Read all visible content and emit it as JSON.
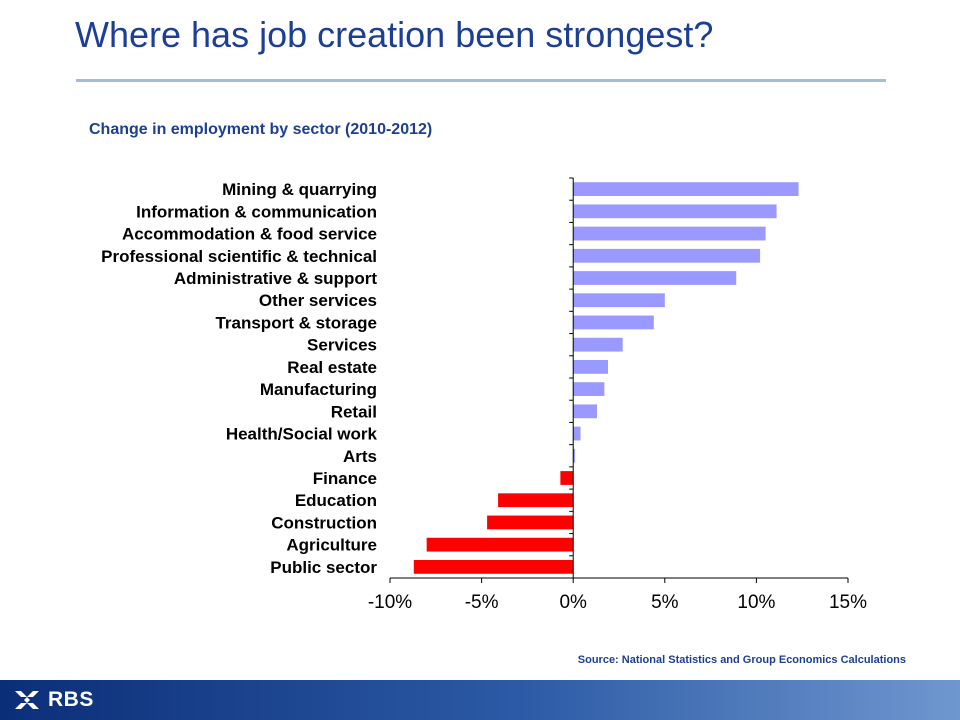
{
  "title": "Where has job creation been strongest?",
  "subtitle": "Change in employment by sector (2010-2012)",
  "source": "Source: National Statistics and Group Economics Calculations",
  "logo_text": "RBS",
  "colors": {
    "positive": "#9999ff",
    "negative": "#ff0000",
    "title": "#1c3f94"
  },
  "chart_data": {
    "type": "bar",
    "orientation": "horizontal",
    "categories": [
      "Mining & quarrying",
      "Information & communication",
      "Accommodation & food service",
      "Professional scientific & technical",
      "Administrative & support",
      "Other services",
      "Transport & storage",
      "Services",
      "Real estate",
      "Manufacturing",
      "Retail",
      "Health/Social work",
      "Arts",
      "Finance",
      "Education",
      "Construction",
      "Agriculture",
      "Public sector"
    ],
    "values": [
      12.3,
      11.1,
      10.5,
      10.2,
      8.9,
      5.0,
      4.4,
      2.7,
      1.9,
      1.7,
      1.3,
      0.4,
      0.1,
      -0.7,
      -4.1,
      -4.7,
      -8.0,
      -8.7
    ],
    "unit": "%",
    "xlim": [
      -10,
      15
    ],
    "xticks": [
      -10,
      -5,
      0,
      5,
      10,
      15
    ],
    "xtick_labels": [
      "-10%",
      "-5%",
      "0%",
      "5%",
      "10%",
      "15%"
    ],
    "title": "Change in employment by sector (2010-2012)",
    "xlabel": "",
    "ylabel": "",
    "grid": false,
    "legend": "none"
  }
}
